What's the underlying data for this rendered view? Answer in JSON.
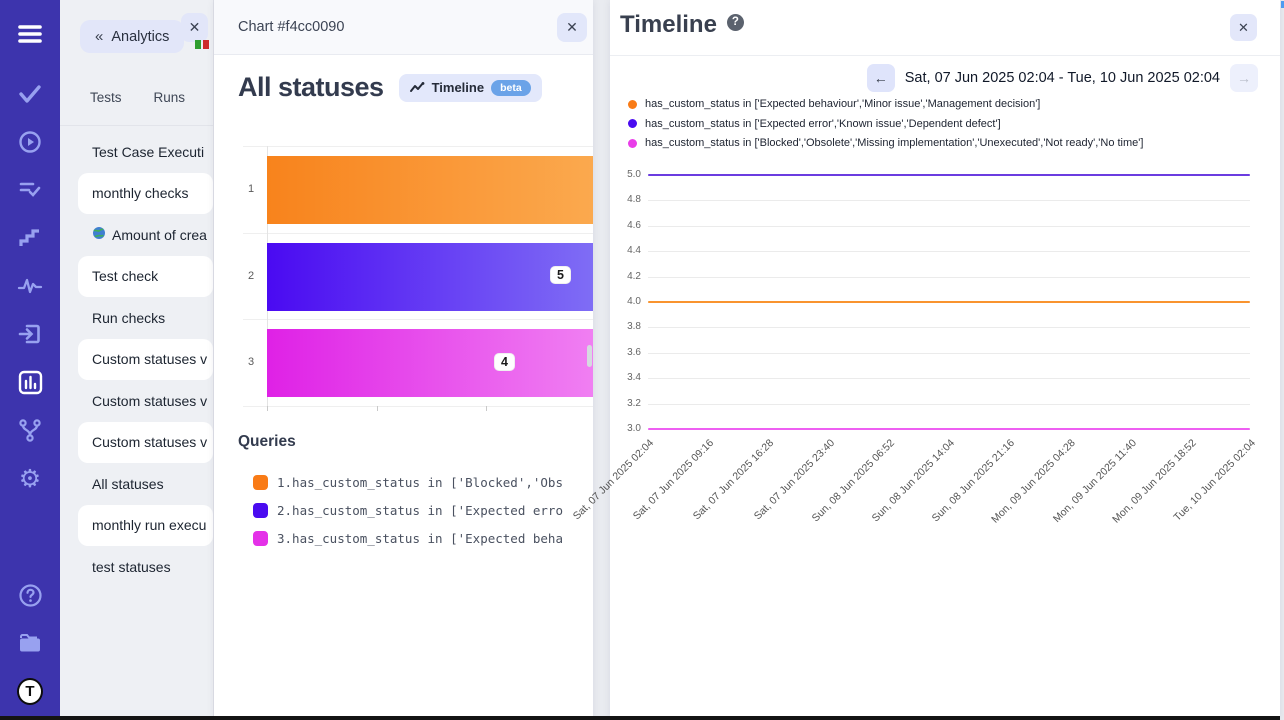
{
  "sidebar": {
    "logo_text": "T",
    "icons": [
      {
        "name": "menu"
      },
      {
        "name": "tests-check"
      },
      {
        "name": "runs-play"
      },
      {
        "name": "suites-list-check"
      },
      {
        "name": "milestones-steps"
      },
      {
        "name": "pulse-activity"
      },
      {
        "name": "sign-in"
      },
      {
        "name": "analytics-bar-chart",
        "active": true
      },
      {
        "name": "branches"
      },
      {
        "name": "settings-gear"
      },
      {
        "name": "help"
      },
      {
        "name": "projects-folder"
      },
      {
        "name": "logo"
      }
    ],
    "gear_glyph": "⚙"
  },
  "nav_panel": {
    "back_chevron": "«",
    "back_label": "Analytics",
    "close_label": "✕",
    "tabs": [
      {
        "label": "Tests"
      },
      {
        "label": "Runs"
      }
    ],
    "items": [
      {
        "label": "Test Case Executi"
      },
      {
        "label": "monthly checks",
        "card": true
      },
      {
        "label": "Amount of crea",
        "icon": "globe"
      },
      {
        "label": "Test check",
        "card": true
      },
      {
        "label": "Run checks"
      },
      {
        "label": "Custom statuses v",
        "card": true
      },
      {
        "label": "Custom statuses v"
      },
      {
        "label": "Custom statuses v",
        "card": true
      },
      {
        "label": "All statuses"
      },
      {
        "label": "monthly run execu",
        "card": true
      },
      {
        "label": "test statuses"
      }
    ]
  },
  "chart_panel": {
    "header_title": "Chart #f4cc0090",
    "close_label": "✕",
    "heading": "All statuses",
    "timeline_button": {
      "label": "Timeline",
      "badge": "beta"
    },
    "queries_heading": "Queries",
    "queries": [
      {
        "color": "#f97b16",
        "text": "1.has_custom_status in ['Blocked','Obs"
      },
      {
        "color": "#4a0bf0",
        "text": "2.has_custom_status in ['Expected erro"
      },
      {
        "color": "#e431e8",
        "text": "3.has_custom_status in ['Expected beha"
      }
    ]
  },
  "timeline_panel": {
    "title": "Timeline",
    "help_label": "?",
    "close_label": "✕",
    "prev_label": "←",
    "next_label": "→",
    "date_range": "Sat, 07 Jun 2025 02:04 - Tue, 10 Jun 2025 02:04",
    "legend": [
      {
        "color": "#f97b16",
        "text": "has_custom_status in ['Expected behaviour','Minor issue','Management decision']"
      },
      {
        "color": "#4a0bf0",
        "text": "has_custom_status in ['Expected error','Known issue','Dependent defect']"
      },
      {
        "color": "#e93ee9",
        "text": "has_custom_status in ['Blocked','Obsolete','Missing implementation','Unexecuted','Not ready','No time']"
      }
    ]
  },
  "chart_data": [
    {
      "type": "bar",
      "orientation": "horizontal",
      "title": "All statuses",
      "categories": [
        "1",
        "2",
        "3"
      ],
      "values": [
        null,
        5,
        4
      ],
      "value_labels": [
        "",
        "5",
        "4"
      ],
      "bar_gradients": [
        [
          "#f8831c",
          "#fba94e"
        ],
        [
          "#4a0af2",
          "#7f6df5"
        ],
        [
          "#df21e6",
          "#f07ff2"
        ]
      ]
    },
    {
      "type": "line",
      "title": "Timeline",
      "x": [
        "Sat, 07 Jun 2025 02:04",
        "Sat, 07 Jun 2025 09:16",
        "Sat, 07 Jun 2025 16:28",
        "Sat, 07 Jun 2025 23:40",
        "Sun, 08 Jun 2025 06:52",
        "Sun, 08 Jun 2025 14:04",
        "Sun, 08 Jun 2025 21:16",
        "Mon, 09 Jun 2025 04:28",
        "Mon, 09 Jun 2025 11:40",
        "Mon, 09 Jun 2025 18:52",
        "Tue, 10 Jun 2025 02:04"
      ],
      "series": [
        {
          "name": "has_custom_status in ['Expected behaviour','Minor issue','Management decision']",
          "color": "#f9942f",
          "values": [
            4,
            4,
            4,
            4,
            4,
            4,
            4,
            4,
            4,
            4,
            4
          ]
        },
        {
          "name": "has_custom_status in ['Expected error','Known issue','Dependent defect']",
          "color": "#6b3ce0",
          "values": [
            5,
            5,
            5,
            5,
            5,
            5,
            5,
            5,
            5,
            5,
            5
          ]
        },
        {
          "name": "has_custom_status in ['Blocked','Obsolete','Missing implementation','Unexecuted','Not ready','No time']",
          "color": "#ee5ff2",
          "values": [
            3,
            3,
            3,
            3,
            3,
            3,
            3,
            3,
            3,
            3,
            3
          ]
        }
      ],
      "ylim": [
        3.0,
        5.0
      ],
      "yticks": [
        "5.0",
        "4.8",
        "4.6",
        "4.4",
        "4.2",
        "4.0",
        "3.8",
        "3.6",
        "3.4",
        "3.2",
        "3.0"
      ],
      "grid": true,
      "legend_position": "top-left"
    }
  ]
}
